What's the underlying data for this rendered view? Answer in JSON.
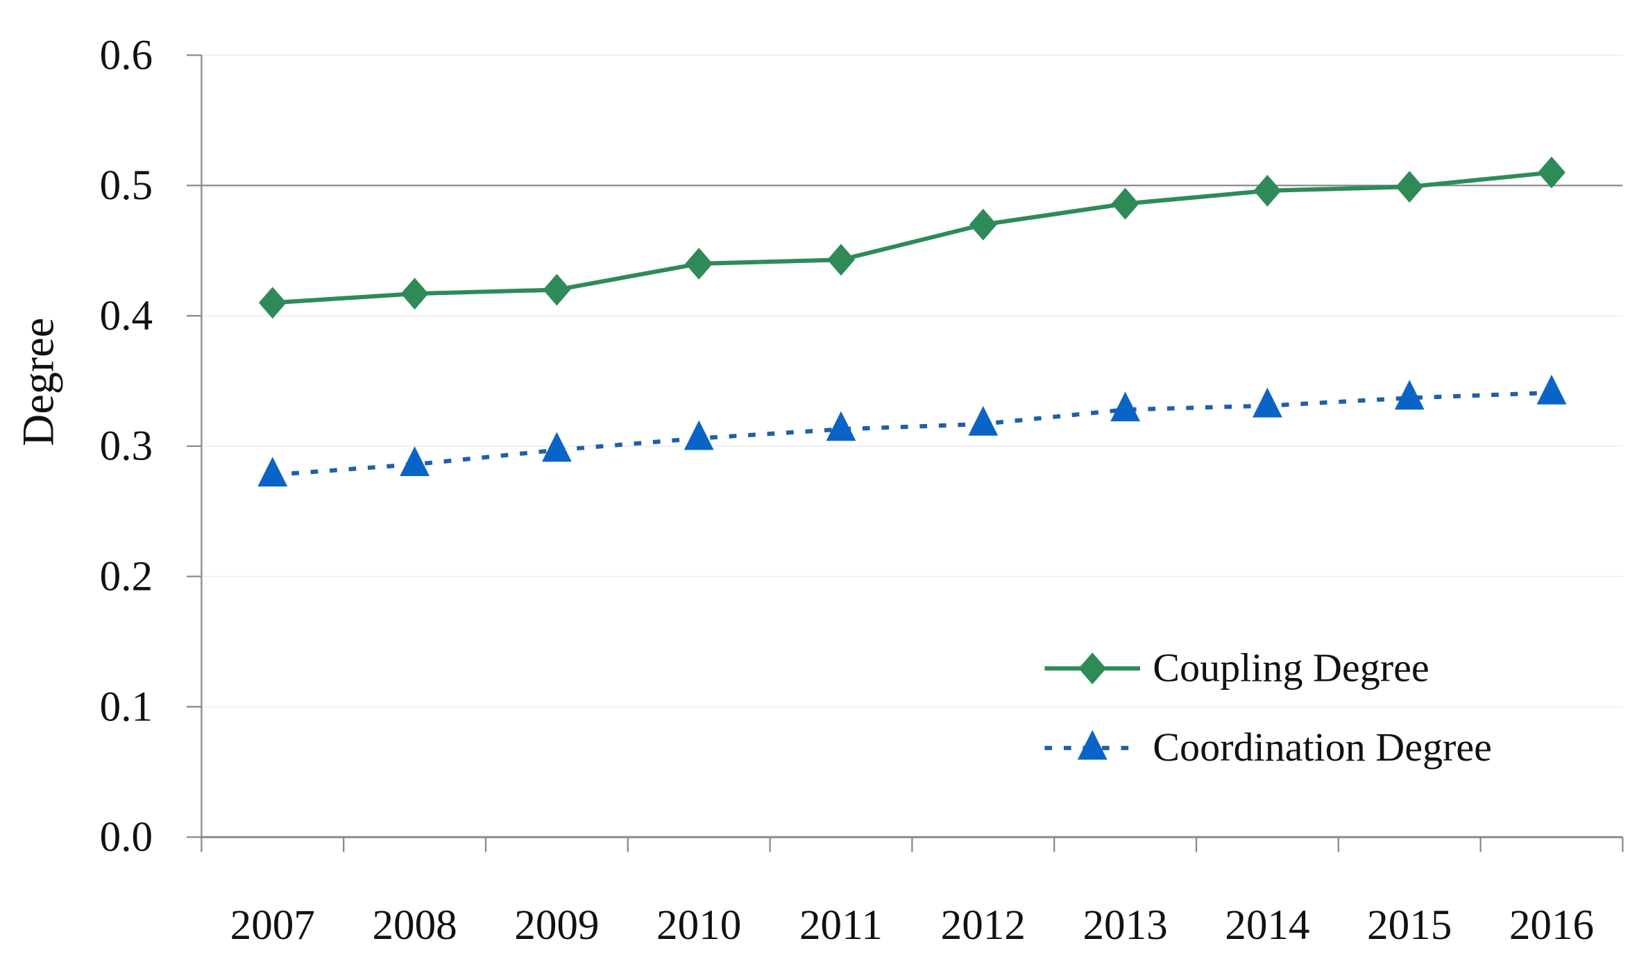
{
  "chart_data": {
    "type": "line",
    "title": "",
    "xlabel": "",
    "ylabel": "Degree",
    "categories": [
      "2007",
      "2008",
      "2009",
      "2010",
      "2011",
      "2012",
      "2013",
      "2014",
      "2015",
      "2016"
    ],
    "ylim": [
      0,
      0.6
    ],
    "yticks": [
      "0.0",
      "0.1",
      "0.2",
      "0.3",
      "0.4",
      "0.5",
      "0.6"
    ],
    "grid": "horizontal",
    "legend_position": "lower-right",
    "series": [
      {
        "name": "Coupling Degree",
        "color": "#2e8b57",
        "marker": "diamond",
        "line": "solid",
        "values": [
          0.41,
          0.417,
          0.42,
          0.44,
          0.443,
          0.47,
          0.486,
          0.496,
          0.499,
          0.51
        ]
      },
      {
        "name": "Coordination Degree",
        "color": "#0a64c8",
        "marker": "triangle",
        "line": "dotted",
        "values": [
          0.278,
          0.286,
          0.297,
          0.306,
          0.313,
          0.317,
          0.328,
          0.331,
          0.337,
          0.341
        ]
      }
    ]
  }
}
